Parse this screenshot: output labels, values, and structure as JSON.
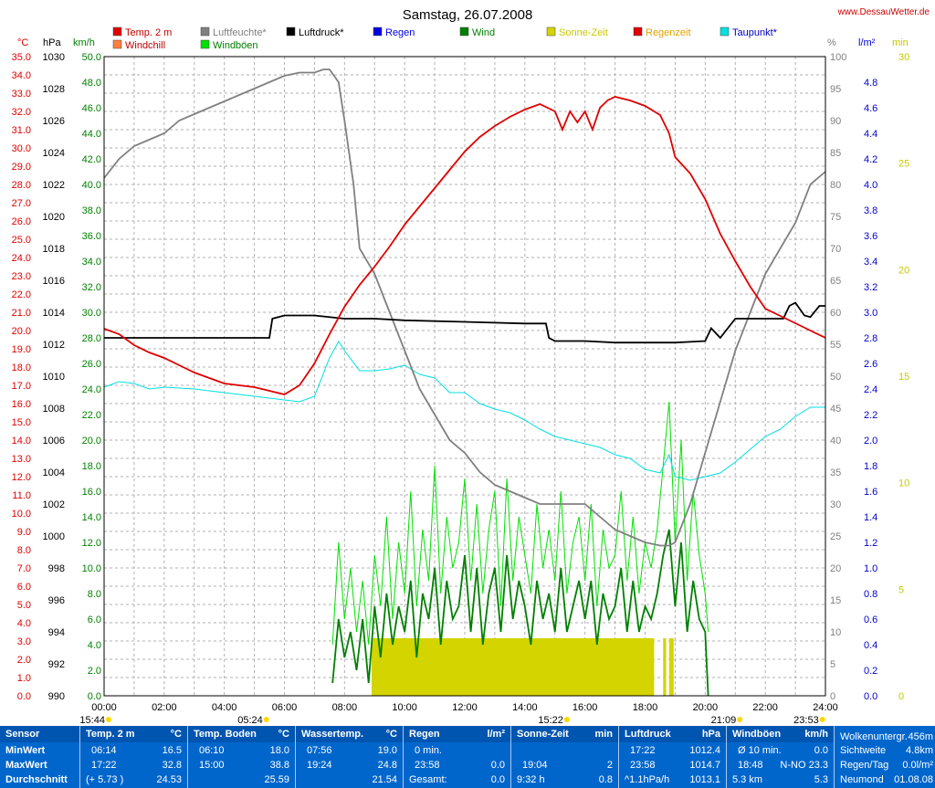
{
  "header": {
    "title": "Samstag, 26.07.2008",
    "site": "www.DessauWetter.de"
  },
  "legend": [
    {
      "label": "Temp. 2 m",
      "color": "#e00000",
      "text_color": "#c00000"
    },
    {
      "label": "Luftfeuchte*",
      "color": "#808080",
      "text_color": "#808080"
    },
    {
      "label": "Luftdruck*",
      "color": "#000000",
      "text_color": "#000000"
    },
    {
      "label": "Regen",
      "color": "#0000e0",
      "text_color": "#0000e0"
    },
    {
      "label": "Wind",
      "color": "#008000",
      "text_color": "#008000"
    },
    {
      "label": "Sonne-Zeit",
      "color": "#d4d400",
      "text_color": "#c8c800"
    },
    {
      "label": "Regenzeit",
      "color": "#e00000",
      "text_color": "#e0a000"
    },
    {
      "label": "Taupunkt*",
      "color": "#00e0e0",
      "text_color": "#0000c0"
    },
    {
      "label": "Windchill",
      "color": "#ff8040",
      "text_color": "#c00000"
    },
    {
      "label": "Windböen",
      "color": "#00e000",
      "text_color": "#008000"
    }
  ],
  "axis_units": {
    "temp": "°C",
    "press": "hPa",
    "wind": "km/h",
    "hum": "%",
    "rain": "l/m²",
    "min": "min"
  },
  "axis_ticks": {
    "temp": [
      "0.0",
      "1.0",
      "2.0",
      "3.0",
      "4.0",
      "5.0",
      "6.0",
      "7.0",
      "8.0",
      "9.0",
      "10.0",
      "11.0",
      "12.0",
      "13.0",
      "14.0",
      "15.0",
      "16.0",
      "17.0",
      "18.0",
      "19.0",
      "20.0",
      "21.0",
      "22.0",
      "23.0",
      "24.0",
      "25.0",
      "26.0",
      "27.0",
      "28.0",
      "29.0",
      "30.0",
      "31.0",
      "32.0",
      "33.0",
      "34.0",
      "35.0"
    ],
    "press": [
      "990",
      "992",
      "994",
      "996",
      "998",
      "1000",
      "1002",
      "1004",
      "1006",
      "1008",
      "1010",
      "1012",
      "1014",
      "1016",
      "1018",
      "1020",
      "1022",
      "1024",
      "1026",
      "1028",
      "1030"
    ],
    "wind": [
      "0.0",
      "2.0",
      "4.0",
      "6.0",
      "8.0",
      "10.0",
      "12.0",
      "14.0",
      "16.0",
      "18.0",
      "20.0",
      "22.0",
      "24.0",
      "26.0",
      "28.0",
      "30.0",
      "32.0",
      "34.0",
      "36.0",
      "38.0",
      "40.0",
      "42.0",
      "44.0",
      "46.0",
      "48.0",
      "50.0"
    ],
    "hum": [
      "0",
      "5",
      "10",
      "15",
      "20",
      "25",
      "30",
      "35",
      "40",
      "45",
      "50",
      "55",
      "60",
      "65",
      "70",
      "75",
      "80",
      "85",
      "90",
      "95",
      "100"
    ],
    "rain": [
      "0.0",
      "0.2",
      "0.4",
      "0.6",
      "0.8",
      "1.0",
      "1.2",
      "1.4",
      "1.6",
      "1.8",
      "2.0",
      "2.2",
      "2.4",
      "2.6",
      "2.8",
      "3.0",
      "3.2",
      "3.4",
      "3.6",
      "3.8",
      "4.0",
      "4.2",
      "4.4",
      "4.6",
      "4.8"
    ],
    "min": [
      "0",
      "5",
      "10",
      "15",
      "20",
      "25",
      "30"
    ],
    "time": [
      "00:00",
      "02:00",
      "04:00",
      "06:00",
      "08:00",
      "10:00",
      "12:00",
      "14:00",
      "16:00",
      "18:00",
      "20:00",
      "22:00",
      "24:00"
    ]
  },
  "sun_moon_markers": [
    {
      "time": "15:44",
      "hour": 0.15
    },
    {
      "time": "05:24",
      "hour": 5.4
    },
    {
      "time": "15:22",
      "hour": 15.4
    },
    {
      "time": "21:09",
      "hour": 21.15
    },
    {
      "time": "23:53",
      "hour": 23.9
    }
  ],
  "chart_data": {
    "type": "line",
    "title": "Samstag, 26.07.2008",
    "x_range": [
      0,
      24
    ],
    "ranges": {
      "temp": [
        0,
        35
      ],
      "press": [
        990,
        1030
      ],
      "wind": [
        0,
        50
      ],
      "hum": [
        0,
        100
      ],
      "rain": [
        0,
        5
      ],
      "min": [
        0,
        30
      ]
    },
    "grid": true,
    "series": [
      {
        "name": "Temp. 2 m",
        "axis": "temp",
        "color": "#e00000",
        "x": [
          0,
          0.5,
          1,
          1.5,
          2,
          2.5,
          3,
          3.5,
          4,
          4.5,
          5,
          5.5,
          6,
          6.5,
          7,
          7.5,
          8,
          8.5,
          9,
          9.5,
          10,
          10.5,
          11,
          11.5,
          12,
          12.5,
          13,
          13.5,
          14,
          14.5,
          15,
          15.25,
          15.5,
          15.75,
          16,
          16.25,
          16.5,
          16.75,
          17,
          17.5,
          18,
          18.5,
          18.8,
          19,
          19.5,
          20,
          20.5,
          21,
          21.5,
          22,
          22.5,
          23,
          23.5,
          24
        ],
        "y": [
          20.1,
          19.8,
          19.2,
          18.8,
          18.5,
          18.1,
          17.7,
          17.4,
          17.1,
          17.0,
          16.9,
          16.7,
          16.5,
          17.0,
          18.2,
          19.8,
          21.3,
          22.5,
          23.5,
          24.6,
          25.8,
          26.8,
          27.8,
          28.8,
          29.8,
          30.6,
          31.2,
          31.7,
          32.1,
          32.4,
          32.0,
          31.0,
          32.0,
          31.4,
          32.0,
          31.0,
          32.2,
          32.6,
          32.8,
          32.6,
          32.3,
          31.8,
          30.8,
          29.5,
          28.6,
          27.2,
          25.3,
          23.8,
          22.4,
          21.2,
          20.8,
          20.4,
          20.0,
          19.6
        ]
      },
      {
        "name": "Luftfeuchte*",
        "axis": "hum",
        "color": "#808080",
        "x": [
          0,
          0.5,
          1,
          1.5,
          2,
          2.5,
          3,
          3.5,
          4,
          4.5,
          5,
          5.5,
          6,
          6.5,
          7,
          7.3,
          7.5,
          7.8,
          8,
          8.3,
          8.5,
          9,
          9.5,
          10,
          10.5,
          11,
          11.5,
          12,
          12.5,
          13,
          13.5,
          14,
          14.5,
          15,
          15.5,
          16,
          16.5,
          17,
          17.5,
          18,
          18.5,
          18.8,
          19,
          19.5,
          20,
          20.5,
          21,
          21.5,
          22,
          22.5,
          23,
          23.5,
          24
        ],
        "y": [
          81,
          84,
          86,
          87,
          88,
          90,
          91,
          92,
          93,
          94,
          95,
          96,
          97,
          97.5,
          97.5,
          98,
          98,
          96,
          90,
          80,
          70,
          66,
          60,
          54,
          48,
          44,
          40,
          38,
          35,
          33,
          32,
          31,
          30,
          30,
          30,
          30,
          28,
          26,
          25,
          24,
          23.5,
          23.5,
          24,
          30,
          38,
          46,
          54,
          60,
          66,
          70,
          74,
          80,
          82
        ]
      },
      {
        "name": "Luftdruck*",
        "axis": "press",
        "color": "#000000",
        "x": [
          0,
          5.5,
          5.6,
          6,
          7,
          8,
          9,
          10,
          12,
          14,
          14.7,
          14.8,
          15,
          16,
          17,
          18,
          19,
          20,
          20.2,
          20.5,
          21,
          22,
          22.6,
          22.8,
          23,
          23.3,
          23.5,
          23.8,
          24
        ],
        "y": [
          1012.4,
          1012.4,
          1013.6,
          1013.8,
          1013.8,
          1013.6,
          1013.6,
          1013.5,
          1013.4,
          1013.3,
          1013.3,
          1012.4,
          1012.2,
          1012.2,
          1012.1,
          1012.1,
          1012.1,
          1012.2,
          1013.0,
          1012.4,
          1013.6,
          1013.6,
          1013.6,
          1014.4,
          1014.6,
          1013.8,
          1013.7,
          1014.4,
          1014.4
        ]
      },
      {
        "name": "Taupunkt*",
        "axis": "temp",
        "color": "#00e0e0",
        "x": [
          0,
          0.5,
          1,
          1.5,
          2,
          3,
          4,
          5,
          6,
          6.5,
          7,
          7.5,
          7.8,
          8,
          8.5,
          9,
          9.5,
          10,
          10.5,
          11,
          11.5,
          12,
          12.5,
          13,
          13.5,
          14,
          14.5,
          15,
          15.5,
          16,
          16.5,
          17,
          17.5,
          18,
          18.5,
          18.8,
          19,
          19.5,
          20,
          20.5,
          21,
          21.5,
          22,
          22.5,
          23,
          23.5,
          24
        ],
        "y": [
          16.9,
          17.2,
          17.1,
          16.8,
          16.9,
          16.8,
          16.6,
          16.4,
          16.2,
          16.1,
          16.4,
          18.5,
          19.4,
          18.9,
          17.8,
          17.8,
          17.9,
          18.1,
          17.6,
          17.4,
          16.6,
          16.6,
          16.0,
          15.7,
          15.5,
          15.1,
          14.6,
          14.2,
          14.0,
          13.8,
          13.6,
          13.2,
          13.0,
          12.4,
          12.2,
          13.2,
          12.0,
          11.8,
          12.0,
          12.2,
          12.8,
          13.5,
          14.2,
          14.6,
          15.3,
          15.8,
          15.8
        ]
      },
      {
        "name": "Windböen",
        "axis": "wind",
        "color": "#00e000",
        "x": [
          7.6,
          7.8,
          8,
          8.2,
          8.4,
          8.6,
          8.8,
          9,
          9.2,
          9.4,
          9.6,
          9.8,
          10,
          10.2,
          10.4,
          10.6,
          10.8,
          11,
          11.2,
          11.4,
          11.6,
          11.8,
          12,
          12.2,
          12.4,
          12.6,
          12.8,
          13,
          13.2,
          13.4,
          13.6,
          13.8,
          14,
          14.2,
          14.4,
          14.6,
          14.8,
          15,
          15.2,
          15.4,
          15.6,
          15.8,
          16,
          16.2,
          16.4,
          16.6,
          16.8,
          17,
          17.2,
          17.4,
          17.6,
          17.8,
          18,
          18.2,
          18.4,
          18.6,
          18.8,
          19,
          19.2,
          19.4,
          19.6,
          19.8,
          20,
          20.1
        ],
        "y": [
          4,
          12,
          6,
          10,
          5,
          9,
          4,
          11,
          7,
          14,
          6,
          12,
          8,
          16,
          7,
          13,
          9,
          18,
          8,
          14,
          10,
          12,
          17,
          9,
          15,
          8,
          13,
          16,
          7,
          17,
          9,
          14,
          11,
          8,
          15,
          10,
          13,
          9,
          16,
          8,
          12,
          14,
          9,
          15,
          7,
          13,
          10,
          11,
          16,
          9,
          14,
          8,
          12,
          10,
          13,
          18,
          23,
          12,
          20,
          9,
          16,
          11,
          8,
          5
        ]
      },
      {
        "name": "Wind",
        "axis": "wind",
        "color": "#008000",
        "x": [
          7.6,
          7.8,
          8,
          8.2,
          8.4,
          8.6,
          8.8,
          9,
          9.2,
          9.4,
          9.6,
          9.8,
          10,
          10.2,
          10.4,
          10.6,
          10.8,
          11,
          11.2,
          11.4,
          11.6,
          11.8,
          12,
          12.2,
          12.4,
          12.6,
          12.8,
          13,
          13.2,
          13.4,
          13.6,
          13.8,
          14,
          14.2,
          14.4,
          14.6,
          14.8,
          15,
          15.2,
          15.4,
          15.6,
          15.8,
          16,
          16.2,
          16.4,
          16.6,
          16.8,
          17,
          17.2,
          17.4,
          17.6,
          17.8,
          18,
          18.2,
          18.4,
          18.6,
          18.8,
          19,
          19.2,
          19.4,
          19.6,
          19.8,
          20,
          20.1
        ],
        "y": [
          1,
          6,
          3,
          5,
          2,
          6,
          1,
          7,
          3,
          8,
          4,
          7,
          5,
          9,
          3,
          8,
          6,
          10,
          4,
          9,
          6,
          7,
          11,
          5,
          10,
          4,
          8,
          10,
          5,
          11,
          6,
          9,
          7,
          4,
          9,
          6,
          8,
          5,
          10,
          5,
          7,
          9,
          6,
          9,
          4,
          8,
          6,
          7,
          10,
          5,
          9,
          5,
          7,
          6,
          8,
          11,
          13,
          7,
          12,
          5,
          9,
          6,
          5,
          0
        ]
      },
      {
        "name": "Sonne-Zeit",
        "axis": "min",
        "color": "#d4d400",
        "type": "bar",
        "segments": [
          [
            8.9,
            18.3,
            2.7
          ],
          [
            18.6,
            18.7,
            2.7
          ],
          [
            18.8,
            18.95,
            2.7
          ]
        ]
      },
      {
        "name": "Regen",
        "axis": "rain",
        "color": "#0000e0",
        "values": []
      },
      {
        "name": "Regenzeit",
        "axis": "min",
        "color": "#e00000",
        "values": []
      },
      {
        "name": "Windchill",
        "axis": "temp",
        "color": "#ff8040",
        "values": []
      }
    ]
  },
  "stats": {
    "row_labels": {
      "sensor": "Sensor",
      "min": "MinWert",
      "max": "MaxWert",
      "avg": "Durchschnitt"
    },
    "columns": [
      {
        "title": "Temp. 2 m",
        "unit": "°C",
        "min_time": "06:14",
        "min_val": "16.5",
        "max_time": "17:22",
        "max_val": "32.8",
        "avg_note": "(+ 5.73 )",
        "avg_val": "24.53"
      },
      {
        "title": "Temp. Boden",
        "unit": "°C",
        "min_time": "06:10",
        "min_val": "18.0",
        "max_time": "15:00",
        "max_val": "38.8",
        "avg_note": "",
        "avg_val": "25.59"
      },
      {
        "title": "Wassertemp.",
        "unit": "°C",
        "min_time": "07:56",
        "min_val": "19.0",
        "max_time": "19:24",
        "max_val": "24.8",
        "avg_note": "",
        "avg_val": "21.54"
      },
      {
        "title": "Regen",
        "unit": "l/m²",
        "min_time": "0 min.",
        "min_val": "",
        "max_time": "23:58",
        "max_val": "0.0",
        "avg_note": "Gesamt:",
        "avg_val": "0.0"
      },
      {
        "title": "Sonne-Zeit",
        "unit": "min",
        "min_time": "",
        "min_val": "",
        "max_time": "19:04",
        "max_val": "2",
        "avg_note": "9:32 h",
        "avg_val": "0.8"
      },
      {
        "title": "Luftdruck",
        "unit": "hPa",
        "min_time": "17:22",
        "min_val": "1012.4",
        "max_time": "23:58",
        "max_val": "1014.7",
        "avg_note": "^1.1hPa/h",
        "avg_val": "1013.1"
      },
      {
        "title": "Windböen",
        "unit": "km/h",
        "min_time": "Ø 10 min.",
        "min_val": "0.0",
        "max_time": "18:48",
        "max_val": "N-NO 23.3",
        "avg_note": "5.3 km",
        "avg_val": "5.3"
      }
    ],
    "misc": [
      {
        "label": "Wolkenuntergr.",
        "value": "456m"
      },
      {
        "label": "Sichtweite",
        "value": "4.8km"
      },
      {
        "label": "Regen/Tag",
        "value": "0.0l/m²"
      },
      {
        "label": "Neumond",
        "value": "01.08.08"
      }
    ]
  }
}
